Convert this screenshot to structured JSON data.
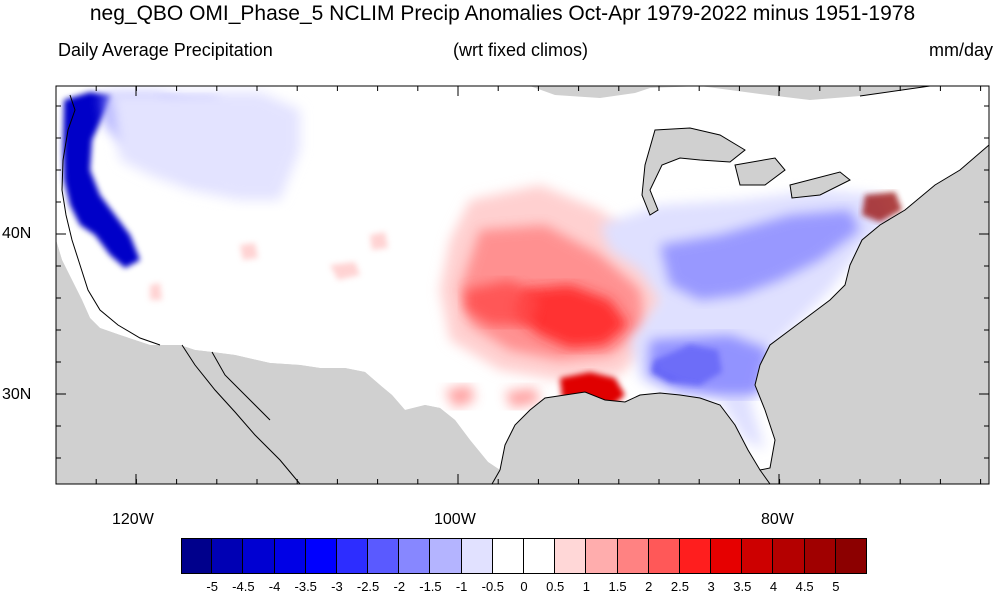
{
  "title": "neg_QBO OMI_Phase_5 NCLIM Precip Anomalies Oct-Apr 1979-2022 minus 1951-1978",
  "subtitle_left": "Daily Average Precipitation",
  "subtitle_center": "(wrt fixed climos)",
  "subtitle_right": "mm/day",
  "lon_labels": [
    "120W",
    "100W",
    "80W"
  ],
  "lat_labels": [
    "40N",
    "30N"
  ],
  "colorbar": {
    "labels": [
      "-5",
      "-4.5",
      "-4",
      "-3.5",
      "-3",
      "-2.5",
      "-2",
      "-1.5",
      "-1",
      "-0.5",
      "0",
      "0.5",
      "1",
      "1.5",
      "2",
      "2.5",
      "3",
      "3.5",
      "4",
      "4.5",
      "5"
    ],
    "colors": [
      "#00008c",
      "#0000b4",
      "#0000d2",
      "#0000e6",
      "#0000ff",
      "#2d2dff",
      "#5a5aff",
      "#8787ff",
      "#b4b4ff",
      "#e1e1ff",
      "#ffffff",
      "#ffffff",
      "#ffd7d7",
      "#ffadad",
      "#ff8282",
      "#ff5858",
      "#ff1e1e",
      "#e60000",
      "#cd0000",
      "#b40000",
      "#a00000",
      "#8c0000"
    ]
  },
  "colors": {
    "land_masked": "#d0d0d0",
    "frame": "#000000"
  }
}
